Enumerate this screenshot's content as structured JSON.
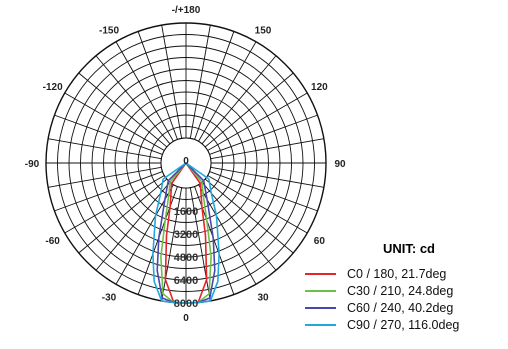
{
  "chart_data": {
    "type": "polar",
    "unit_label": "UNIT: cd",
    "angle_tick_labels": [
      {
        "angle": 180,
        "text": "-/+180"
      },
      {
        "angle": 150,
        "text": "150"
      },
      {
        "angle": -150,
        "text": "-150"
      },
      {
        "angle": 120,
        "text": "120"
      },
      {
        "angle": -120,
        "text": "-120"
      },
      {
        "angle": 90,
        "text": "90"
      },
      {
        "angle": -90,
        "text": "-90"
      },
      {
        "angle": 60,
        "text": "60"
      },
      {
        "angle": -60,
        "text": "-60"
      },
      {
        "angle": 30,
        "text": "30"
      },
      {
        "angle": -30,
        "text": "-30"
      },
      {
        "angle": 0,
        "text": "0"
      }
    ],
    "radial_ticks": [
      {
        "value": 1600,
        "text": "1600"
      },
      {
        "value": 3200,
        "text": "3200"
      },
      {
        "value": 4800,
        "text": "4800"
      },
      {
        "value": 6400,
        "text": "6400"
      },
      {
        "value": 8000,
        "text": "8000"
      }
    ],
    "center_label": "0",
    "r_max": 8000,
    "grid": true,
    "legend_position": "bottom-right",
    "series": [
      {
        "name": "C0 / 180, 21.7deg",
        "color": "#e8232a",
        "points": [
          [
            -35,
            0
          ],
          [
            -30,
            300
          ],
          [
            -20,
            1500
          ],
          [
            -15,
            3500
          ],
          [
            -10,
            6500
          ],
          [
            -5,
            8000
          ],
          [
            0,
            8000
          ],
          [
            5,
            8000
          ],
          [
            10,
            6500
          ],
          [
            15,
            3500
          ],
          [
            20,
            1500
          ],
          [
            30,
            300
          ],
          [
            35,
            0
          ]
        ]
      },
      {
        "name": "C30 / 210, 24.8deg",
        "color": "#6cc04a",
        "points": [
          [
            -40,
            0
          ],
          [
            -30,
            600
          ],
          [
            -20,
            2500
          ],
          [
            -15,
            5000
          ],
          [
            -10,
            7500
          ],
          [
            -5,
            8000
          ],
          [
            0,
            8000
          ],
          [
            5,
            8000
          ],
          [
            10,
            7500
          ],
          [
            15,
            5000
          ],
          [
            20,
            2500
          ],
          [
            30,
            600
          ],
          [
            40,
            0
          ]
        ]
      },
      {
        "name": "C60 / 240, 40.2deg",
        "color": "#4a47b0",
        "points": [
          [
            -45,
            0
          ],
          [
            -30,
            1200
          ],
          [
            -20,
            3800
          ],
          [
            -15,
            6000
          ],
          [
            -10,
            7800
          ],
          [
            -5,
            8000
          ],
          [
            0,
            8000
          ],
          [
            5,
            8000
          ],
          [
            10,
            7800
          ],
          [
            15,
            6000
          ],
          [
            20,
            3800
          ],
          [
            30,
            1200
          ],
          [
            45,
            0
          ]
        ]
      },
      {
        "name": "C90 / 270, 116.0deg",
        "color": "#1fa9e0",
        "points": [
          [
            -55,
            200
          ],
          [
            -40,
            1000
          ],
          [
            -30,
            2500
          ],
          [
            -20,
            5000
          ],
          [
            -15,
            6800
          ],
          [
            -10,
            8000
          ],
          [
            -5,
            8000
          ],
          [
            0,
            8000
          ],
          [
            5,
            8000
          ],
          [
            10,
            8000
          ],
          [
            15,
            6800
          ],
          [
            20,
            5000
          ],
          [
            30,
            2500
          ],
          [
            40,
            1000
          ],
          [
            55,
            200
          ]
        ]
      }
    ]
  }
}
